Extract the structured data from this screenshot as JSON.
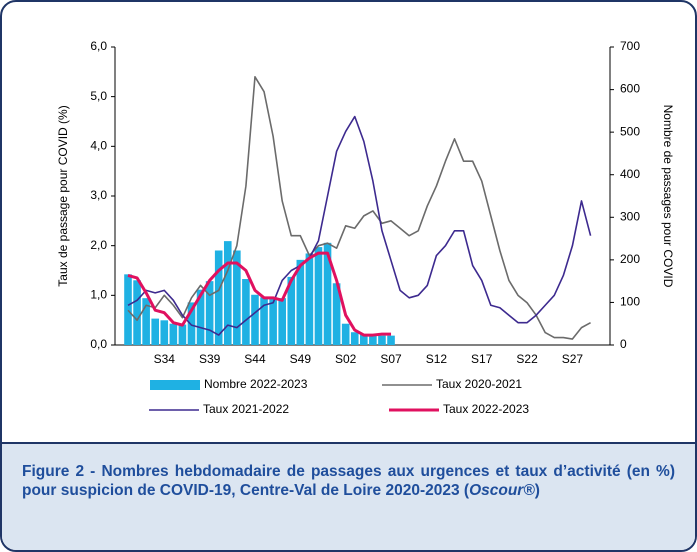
{
  "chart_data": {
    "type": "bar-line",
    "y_label": "Taux de passage pour COVID (%)",
    "y2_label": "Nombre de passages pour COVID",
    "categories": [
      null,
      null,
      null,
      null,
      "S34",
      null,
      null,
      null,
      null,
      "S39",
      null,
      null,
      null,
      null,
      "S44",
      null,
      null,
      null,
      null,
      "S49",
      null,
      null,
      null,
      null,
      "S02",
      null,
      null,
      null,
      null,
      "S07",
      null,
      null,
      null,
      null,
      "S12",
      null,
      null,
      null,
      null,
      "S17",
      null,
      null,
      null,
      null,
      "S22",
      null,
      null,
      null,
      null,
      "S27",
      null,
      null
    ],
    "ylim": [
      0,
      6
    ],
    "yticks": [
      {
        "value": 0,
        "label": "0,0"
      },
      {
        "value": 1,
        "label": "1,0"
      },
      {
        "value": 2,
        "label": "2,0"
      },
      {
        "value": 3,
        "label": "3,0"
      },
      {
        "value": 4,
        "label": "4,0"
      },
      {
        "value": 5,
        "label": "5,0"
      },
      {
        "value": 6,
        "label": "6,0"
      }
    ],
    "y2lim": [
      0,
      700
    ],
    "y2ticks": [
      0,
      100,
      200,
      300,
      400,
      500,
      600,
      700
    ],
    "legend": "bottom",
    "series": [
      {
        "name": "Nombre 2022-2023",
        "type": "bar",
        "axis": "y2",
        "color": "#1fb1e3",
        "values": [
          166,
          152,
          110,
          62,
          58,
          50,
          48,
          100,
          130,
          150,
          222,
          244,
          222,
          155,
          118,
          112,
          112,
          110,
          160,
          200,
          215,
          230,
          240,
          145,
          50,
          30,
          25,
          22,
          22,
          22,
          null,
          null,
          null,
          null,
          null,
          null,
          null,
          null,
          null,
          null,
          null,
          null,
          null,
          null,
          null,
          null,
          null,
          null,
          null,
          null,
          null,
          null
        ]
      },
      {
        "name": "Taux 2020-2021",
        "type": "line",
        "color": "#6b6b6b",
        "width": 1.6,
        "values": [
          0.7,
          0.5,
          0.8,
          0.75,
          1.0,
          0.8,
          0.55,
          0.95,
          1.2,
          1.0,
          1.1,
          1.5,
          2.0,
          3.2,
          5.4,
          5.1,
          4.2,
          2.9,
          2.2,
          2.2,
          1.8,
          2.0,
          2.05,
          1.95,
          2.4,
          2.35,
          2.6,
          2.7,
          2.45,
          2.5,
          2.35,
          2.2,
          2.3,
          2.8,
          3.2,
          3.7,
          4.15,
          3.7,
          3.7,
          3.3,
          2.6,
          1.9,
          1.3,
          1.0,
          0.85,
          0.6,
          0.25,
          0.15,
          0.15,
          0.12,
          0.35,
          0.45
        ]
      },
      {
        "name": "Taux 2021-2022",
        "type": "line",
        "color": "#3d2a8f",
        "width": 1.6,
        "values": [
          0.8,
          0.9,
          1.1,
          1.05,
          1.1,
          0.9,
          0.6,
          0.4,
          0.35,
          0.3,
          0.2,
          0.4,
          0.35,
          0.5,
          0.65,
          0.8,
          0.85,
          1.3,
          1.5,
          1.6,
          1.75,
          2.1,
          3.0,
          3.9,
          4.3,
          4.6,
          4.1,
          3.3,
          2.3,
          1.7,
          1.1,
          0.95,
          1.0,
          1.2,
          1.8,
          2.0,
          2.3,
          2.3,
          1.6,
          1.3,
          0.8,
          0.75,
          0.6,
          0.45,
          0.45,
          0.6,
          0.8,
          1.0,
          1.4,
          2.0,
          2.9,
          2.2
        ]
      },
      {
        "name": "Taux 2022-2023",
        "type": "line",
        "color": "#e0115f",
        "width": 3,
        "values": [
          1.4,
          1.35,
          1.05,
          0.7,
          0.65,
          0.45,
          0.4,
          0.7,
          1.0,
          1.3,
          1.5,
          1.65,
          1.65,
          1.5,
          1.1,
          0.95,
          0.95,
          0.9,
          1.3,
          1.6,
          1.75,
          1.85,
          1.85,
          1.3,
          0.6,
          0.3,
          0.2,
          0.2,
          0.22,
          0.22,
          null,
          null,
          null,
          null,
          null,
          null,
          null,
          null,
          null,
          null,
          null,
          null,
          null,
          null,
          null,
          null,
          null,
          null,
          null,
          null,
          null,
          null
        ]
      }
    ],
    "caption": [
      "Figure 2 - Nombres hebdomadaire de passages aux urgences et taux d’activité (en %) pour suspicion de COVID-19, Centre-Val de Loire 2020-2023 (",
      "Oscour®",
      ")"
    ]
  }
}
